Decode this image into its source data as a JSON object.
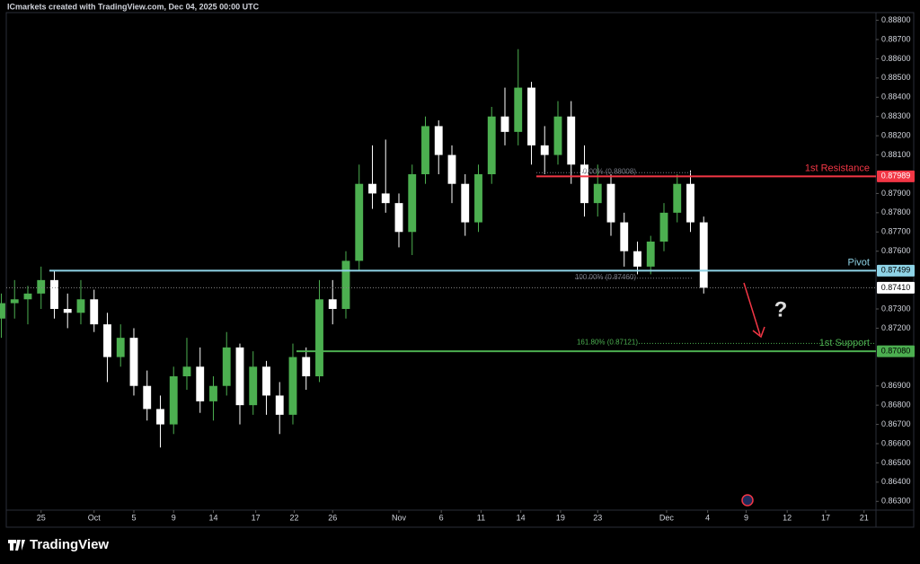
{
  "watermark": "ICmarkets created with TradingView.com, Dec 04, 2025 00:00 UTC",
  "brand": "TradingView",
  "chart_data": {
    "type": "candlestick",
    "up_color": "#4caf50",
    "down_color": "#ffffff",
    "x": [
      0,
      1,
      2,
      3,
      4,
      5,
      6,
      7,
      8,
      9,
      10,
      11,
      12,
      13,
      14,
      15,
      16,
      17,
      18,
      19,
      20,
      21,
      22,
      23,
      24,
      25,
      26,
      27,
      28,
      29,
      30,
      31,
      32,
      33,
      34,
      35,
      36,
      37,
      38,
      39,
      40,
      41,
      42,
      43,
      44,
      45,
      46,
      47,
      48,
      49,
      50,
      51,
      52,
      53
    ],
    "open": [
      0.8725,
      0.8733,
      0.8735,
      0.8738,
      0.8745,
      0.873,
      0.8728,
      0.8735,
      0.8722,
      0.8705,
      0.8715,
      0.869,
      0.8678,
      0.867,
      0.8695,
      0.87,
      0.8682,
      0.869,
      0.871,
      0.868,
      0.87,
      0.8685,
      0.8675,
      0.8705,
      0.8695,
      0.8735,
      0.873,
      0.8755,
      0.8795,
      0.879,
      0.8785,
      0.877,
      0.88,
      0.8825,
      0.881,
      0.8795,
      0.8775,
      0.88,
      0.883,
      0.8822,
      0.8845,
      0.8815,
      0.881,
      0.883,
      0.8805,
      0.8785,
      0.8795,
      0.8775,
      0.876,
      0.8752,
      0.8765,
      0.878,
      0.8795,
      0.8775
    ],
    "high": [
      0.8738,
      0.8745,
      0.8742,
      0.8752,
      0.875,
      0.8738,
      0.8745,
      0.874,
      0.8728,
      0.8722,
      0.872,
      0.8698,
      0.8685,
      0.87,
      0.8715,
      0.871,
      0.8695,
      0.8718,
      0.8712,
      0.8708,
      0.8703,
      0.8692,
      0.8712,
      0.871,
      0.8745,
      0.8745,
      0.876,
      0.8805,
      0.8815,
      0.8818,
      0.879,
      0.8805,
      0.883,
      0.8828,
      0.8815,
      0.88,
      0.8805,
      0.8835,
      0.8845,
      0.8865,
      0.8848,
      0.8825,
      0.8838,
      0.8838,
      0.8815,
      0.8805,
      0.88,
      0.878,
      0.8765,
      0.8768,
      0.8785,
      0.88,
      0.8802,
      0.8778
    ],
    "low": [
      0.8715,
      0.8725,
      0.8722,
      0.873,
      0.8725,
      0.872,
      0.8722,
      0.8718,
      0.8692,
      0.87,
      0.8685,
      0.8672,
      0.8658,
      0.8665,
      0.8688,
      0.8676,
      0.8672,
      0.8685,
      0.867,
      0.8675,
      0.8675,
      0.8665,
      0.867,
      0.8688,
      0.8692,
      0.8722,
      0.8725,
      0.875,
      0.8782,
      0.878,
      0.8762,
      0.8758,
      0.8795,
      0.88,
      0.8785,
      0.8768,
      0.877,
      0.8795,
      0.8815,
      0.8815,
      0.8805,
      0.88,
      0.8805,
      0.8795,
      0.8778,
      0.8778,
      0.8768,
      0.8752,
      0.8748,
      0.8748,
      0.876,
      0.8775,
      0.877,
      0.8738
    ],
    "close": [
      0.8733,
      0.8735,
      0.8738,
      0.8745,
      0.873,
      0.8728,
      0.8735,
      0.8722,
      0.8705,
      0.8715,
      0.869,
      0.8678,
      0.867,
      0.8695,
      0.87,
      0.8682,
      0.869,
      0.871,
      0.868,
      0.87,
      0.8685,
      0.8675,
      0.8705,
      0.8695,
      0.8735,
      0.873,
      0.8755,
      0.8795,
      0.879,
      0.8785,
      0.877,
      0.88,
      0.8825,
      0.881,
      0.8795,
      0.8775,
      0.88,
      0.883,
      0.8822,
      0.8845,
      0.8815,
      0.881,
      0.883,
      0.8805,
      0.8785,
      0.8795,
      0.8775,
      0.876,
      0.8752,
      0.8765,
      0.878,
      0.8795,
      0.8775,
      0.8741
    ],
    "xlim": [
      -0.1,
      66
    ],
    "xticks": [
      {
        "value": 3,
        "label": "25"
      },
      {
        "value": 7,
        "label": "Oct"
      },
      {
        "value": 10,
        "label": "5"
      },
      {
        "value": 13,
        "label": "9"
      },
      {
        "value": 16,
        "label": "14"
      },
      {
        "value": 19.2,
        "label": "17"
      },
      {
        "value": 22.1,
        "label": "22"
      },
      {
        "value": 25,
        "label": "26"
      },
      {
        "value": 30,
        "label": "Nov"
      },
      {
        "value": 33.2,
        "label": "6"
      },
      {
        "value": 36.2,
        "label": "11"
      },
      {
        "value": 39.2,
        "label": "14"
      },
      {
        "value": 42.2,
        "label": "19"
      },
      {
        "value": 45,
        "label": "23"
      },
      {
        "value": 50.2,
        "label": "Dec"
      },
      {
        "value": 53.3,
        "label": "4"
      },
      {
        "value": 56.2,
        "label": "9"
      },
      {
        "value": 59.3,
        "label": "12"
      },
      {
        "value": 62.2,
        "label": "17"
      },
      {
        "value": 65.1,
        "label": "21"
      }
    ],
    "ylim": [
      0.8618,
      0.8884
    ],
    "yticks": [
      {
        "value": 0.888,
        "label": "0.88800"
      },
      {
        "value": 0.887,
        "label": "0.88700"
      },
      {
        "value": 0.886,
        "label": "0.88600"
      },
      {
        "value": 0.885,
        "label": "0.88500"
      },
      {
        "value": 0.884,
        "label": "0.88400"
      },
      {
        "value": 0.883,
        "label": "0.88300"
      },
      {
        "value": 0.882,
        "label": "0.88200"
      },
      {
        "value": 0.881,
        "label": "0.88100"
      },
      {
        "value": 0.879,
        "label": "0.87900"
      },
      {
        "value": 0.878,
        "label": "0.87800"
      },
      {
        "value": 0.877,
        "label": "0.87700"
      },
      {
        "value": 0.876,
        "label": "0.87600"
      },
      {
        "value": 0.873,
        "label": "0.87300"
      },
      {
        "value": 0.872,
        "label": "0.87200"
      },
      {
        "value": 0.869,
        "label": "0.86900"
      },
      {
        "value": 0.868,
        "label": "0.86800"
      },
      {
        "value": 0.867,
        "label": "0.86700"
      },
      {
        "value": 0.866,
        "label": "0.86600"
      },
      {
        "value": 0.865,
        "label": "0.86500"
      },
      {
        "value": 0.864,
        "label": "0.86400"
      },
      {
        "value": 0.863,
        "label": "0.86300"
      }
    ],
    "levels": [
      {
        "name": "1st Resistance",
        "value": 0.87989,
        "label": "0.87989",
        "color": "#f23645"
      },
      {
        "name": "Pivot",
        "value": 0.87499,
        "label": "0.87499",
        "color": "#8ed3e6"
      },
      {
        "name": "1st Support",
        "value": 0.8708,
        "label": "0.87080",
        "color": "#4caf50"
      }
    ],
    "last_price": {
      "value": 0.8741,
      "label": "0.87410"
    },
    "fib": [
      {
        "value": 0.88008,
        "label": "0.00% (0.88008)",
        "color": "#787b86"
      },
      {
        "value": 0.8746,
        "label": "100.00% (0.87460)",
        "color": "#787b86"
      },
      {
        "value": 0.87121,
        "label": "161.80% (0.87121)",
        "color": "#4caf50"
      }
    ],
    "annotation": "?"
  }
}
